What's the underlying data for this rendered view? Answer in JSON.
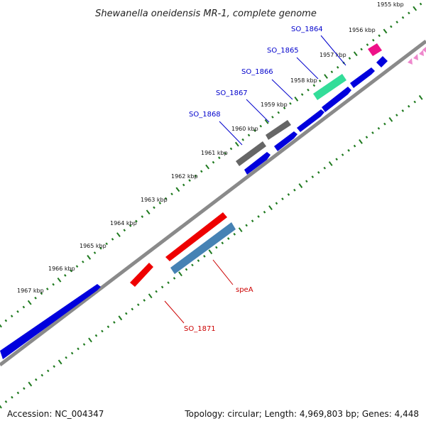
{
  "title": "Shewanella oneidensis MR-1, complete genome",
  "footer": {
    "accession": "Accession: NC_004347",
    "info": "Topology: circular; Length: 4,969,803 bp; Genes: 4,448"
  },
  "colors": {
    "backbone": "#8a8a8a",
    "ticks": "#1f7a1f",
    "blue": "#0000dd",
    "red": "#ee0000",
    "steel": "#4682b4",
    "gray": "#666666",
    "green": "#33dd99",
    "magenta": "#ee1188",
    "pink": "#ee88cc",
    "label_blue": "#0000cc",
    "label_red": "#cc0000"
  },
  "kbp_ticks": [
    "1955 kbp",
    "1956 kbp",
    "1957 kbp",
    "1958 kbp",
    "1959 kbp",
    "1960 kbp",
    "1961 kbp",
    "1962 kbp",
    "1963 kbp",
    "1964 kbp",
    "1965 kbp",
    "1966 kbp",
    "1967 kbp"
  ],
  "gene_labels": [
    {
      "text": "SO_1864",
      "color": "blue"
    },
    {
      "text": "SO_1865",
      "color": "blue"
    },
    {
      "text": "SO_1866",
      "color": "blue"
    },
    {
      "text": "SO_1867",
      "color": "blue"
    },
    {
      "text": "SO_1868",
      "color": "blue"
    },
    {
      "text": "speA",
      "color": "red"
    },
    {
      "text": "SO_1871",
      "color": "red"
    }
  ]
}
